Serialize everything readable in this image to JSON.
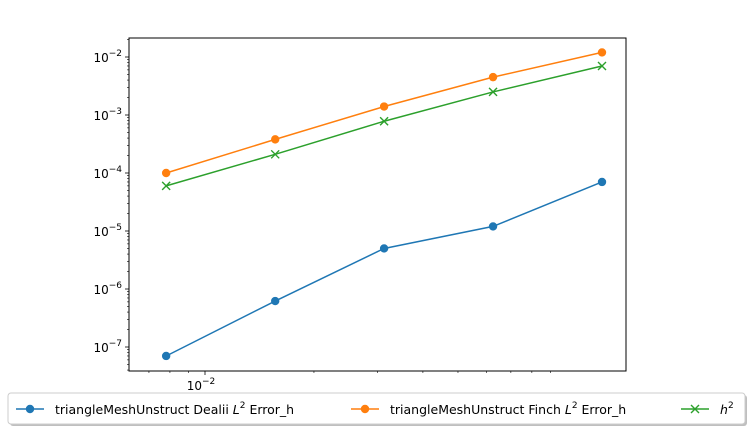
{
  "chart_data": {
    "type": "line",
    "title": "",
    "xlabel": "",
    "ylabel": "",
    "xscale": "log",
    "yscale": "log",
    "xlim": [
      0.0078,
      0.1
    ],
    "ylim": [
      4e-08,
      0.02
    ],
    "grid": false,
    "legend_position": "bottom (below axes, 3 columns)",
    "x": [
      0.00781,
      0.01563,
      0.03125,
      0.0625,
      0.125
    ],
    "x_tick_labels": [
      {
        "value": 0.01,
        "label": "10",
        "exp": "−2"
      }
    ],
    "y_tick_labels": [
      {
        "value": 1e-07,
        "label": "10",
        "exp": "−7"
      },
      {
        "value": 1e-06,
        "label": "10",
        "exp": "−6"
      },
      {
        "value": 1e-05,
        "label": "10",
        "exp": "−5"
      },
      {
        "value": 0.0001,
        "label": "10",
        "exp": "−4"
      },
      {
        "value": 0.001,
        "label": "10",
        "exp": "−3"
      },
      {
        "value": 0.01,
        "label": "10",
        "exp": "−2"
      }
    ],
    "series": [
      {
        "name": "triangleMeshUnstruct Dealii L2 Error_h",
        "legend_parts": [
          "triangleMeshUnstruct Dealii ",
          "L",
          "2",
          " Error_h"
        ],
        "color": "#1f77b4",
        "marker": "circle",
        "values": [
          7e-08,
          6.2e-07,
          5e-06,
          1.2e-05,
          7e-05
        ]
      },
      {
        "name": "triangleMeshUnstruct Finch L2 Error_h",
        "legend_parts": [
          "triangleMeshUnstruct Finch ",
          "L",
          "2",
          " Error_h"
        ],
        "color": "#ff7f0e",
        "marker": "circle",
        "values": [
          0.0001,
          0.00038,
          0.0014,
          0.0045,
          0.012
        ]
      },
      {
        "name": "h2",
        "legend_parts": [
          "",
          "h",
          "2",
          ""
        ],
        "color": "#2ca02c",
        "marker": "x",
        "values": [
          6e-05,
          0.00021,
          0.00078,
          0.0025,
          0.007
        ]
      }
    ]
  }
}
